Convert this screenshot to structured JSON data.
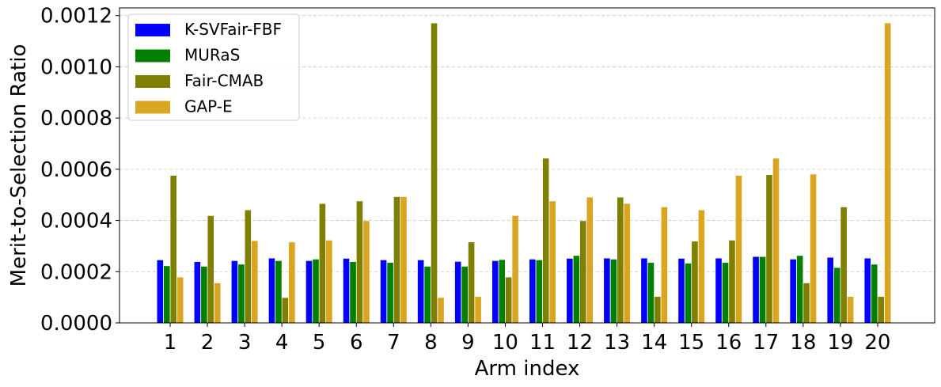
{
  "chart_data": {
    "type": "bar",
    "xlabel": "Arm index",
    "ylabel": "Merit-to-Selection Ratio",
    "categories": [
      "1",
      "2",
      "3",
      "4",
      "5",
      "6",
      "7",
      "8",
      "9",
      "10",
      "11",
      "12",
      "13",
      "14",
      "15",
      "16",
      "17",
      "18",
      "19",
      "20"
    ],
    "ylim": [
      0,
      0.00123
    ],
    "yticks": [
      "0.0000",
      "0.0002",
      "0.0004",
      "0.0006",
      "0.0008",
      "0.0010",
      "0.0012"
    ],
    "ytick_values": [
      0,
      0.0002,
      0.0004,
      0.0006,
      0.0008,
      0.001,
      0.0012
    ],
    "grid": "y, dashed",
    "legend_position": "top-left",
    "series": [
      {
        "name": "K-SVFair-FBF",
        "color": "#0000ff",
        "values": [
          0.000245,
          0.000238,
          0.000242,
          0.000252,
          0.000242,
          0.000251,
          0.000245,
          0.000245,
          0.000239,
          0.000242,
          0.000248,
          0.000251,
          0.000252,
          0.000252,
          0.000251,
          0.000252,
          0.000258,
          0.000248,
          0.000255,
          0.000252
        ]
      },
      {
        "name": "MURaS",
        "color": "#008000",
        "values": [
          0.000222,
          0.00022,
          0.000228,
          0.000242,
          0.000248,
          0.000238,
          0.000235,
          0.00022,
          0.00022,
          0.000246,
          0.000245,
          0.000262,
          0.000248,
          0.000235,
          0.000232,
          0.000235,
          0.000258,
          0.000262,
          0.000215,
          0.000228
        ]
      },
      {
        "name": "Fair-CMAB",
        "color": "#808000",
        "values": [
          0.000575,
          0.000418,
          0.00044,
          9.8e-05,
          0.000465,
          0.000475,
          0.000492,
          0.00117,
          0.000315,
          0.000178,
          0.000642,
          0.000398,
          0.00049,
          0.000102,
          0.000318,
          0.000322,
          0.000578,
          0.000155,
          0.000452,
          0.000102
        ]
      },
      {
        "name": "GAP-E",
        "color": "#daa520",
        "values": [
          0.000178,
          0.000155,
          0.00032,
          0.000315,
          0.000322,
          0.000398,
          0.000492,
          9.8e-05,
          0.000102,
          0.000418,
          0.000475,
          0.00049,
          0.000465,
          0.000452,
          0.00044,
          0.000575,
          0.000642,
          0.00058,
          0.000102,
          0.00117
        ]
      }
    ]
  }
}
